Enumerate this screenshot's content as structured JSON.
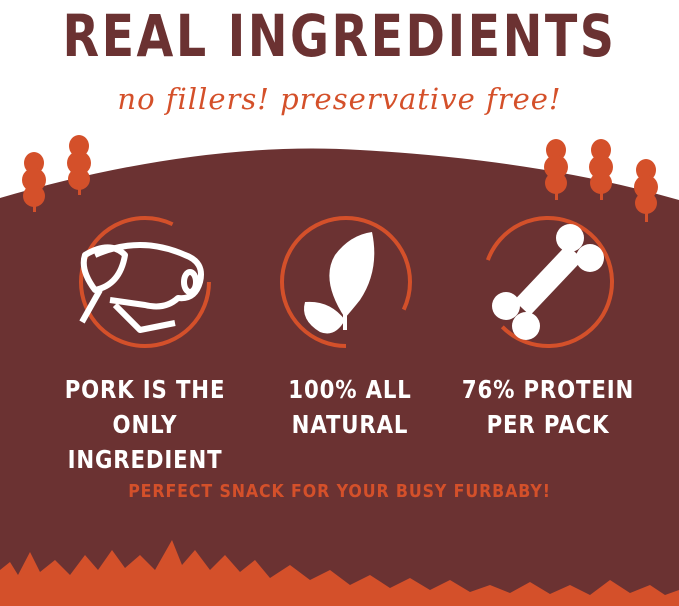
{
  "title": "REAL INGREDIENTS",
  "subtitle": "no fillers! preservative free!",
  "colors": {
    "maroon": "#6b3232",
    "orange": "#d4502a",
    "white": "#ffffff"
  },
  "features": [
    {
      "icon": "pig-icon",
      "line1": "PORK IS THE",
      "line2": "ONLY INGREDIENT"
    },
    {
      "icon": "leaf-icon",
      "line1": "100% ALL",
      "line2": "NATURAL"
    },
    {
      "icon": "bone-icon",
      "line1": "76% PROTEIN",
      "line2": "PER PACK"
    }
  ],
  "tagline": "PERFECT SNACK FOR YOUR BUSY FURBABY!"
}
